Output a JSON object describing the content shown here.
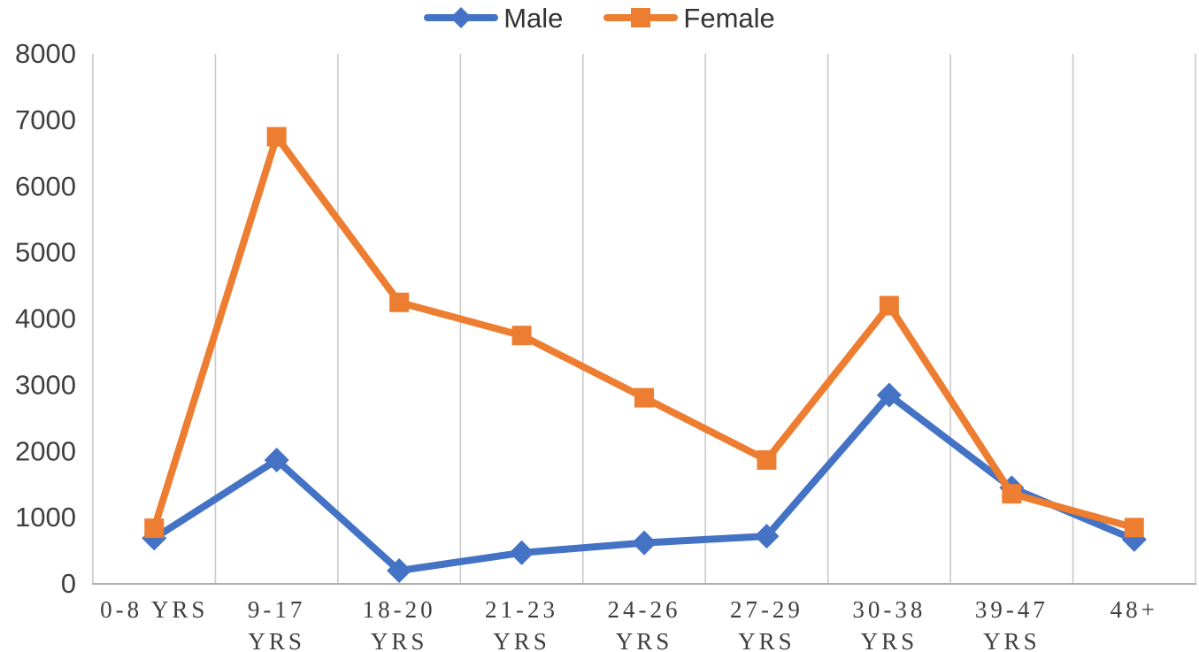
{
  "chart_data": {
    "type": "line",
    "title": "",
    "xlabel": "",
    "ylabel": "",
    "categories": [
      "0-8 YRS",
      "9-17 YRS",
      "18-20 YRS",
      "21-23 YRS",
      "24-26 YRS",
      "27-29 YRS",
      "30-38 YRS",
      "39-47 YRS",
      "48+"
    ],
    "series": [
      {
        "name": "Male",
        "marker": "diamond",
        "color": "#4472C4",
        "values": [
          690,
          1870,
          200,
          470,
          620,
          720,
          2850,
          1450,
          670
        ]
      },
      {
        "name": "Female",
        "marker": "square",
        "color": "#ED7D31",
        "values": [
          840,
          6750,
          4250,
          3750,
          2810,
          1870,
          4200,
          1360,
          850
        ]
      }
    ],
    "ylim": [
      0,
      8000
    ],
    "yticks": [
      0,
      1000,
      2000,
      3000,
      4000,
      5000,
      6000,
      7000,
      8000
    ],
    "xtick_wrap": [
      false,
      true,
      true,
      true,
      true,
      true,
      true,
      true,
      false
    ],
    "grid": "vertical-only",
    "legend_position": "top-center",
    "colors": {
      "gridline": "#C9C9C9",
      "axis_line": "#AFAFAF",
      "tick_label": "#3F3F3F"
    }
  }
}
